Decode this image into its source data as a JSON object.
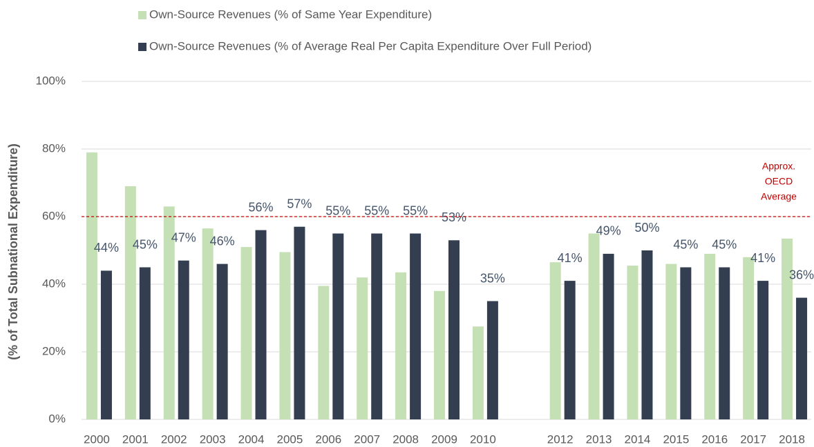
{
  "chart_data": {
    "type": "bar",
    "y_label": "(% of Total Subnational Expenditure)",
    "categories": [
      "2000",
      "2001",
      "2002",
      "2003",
      "2004",
      "2005",
      "2006",
      "2007",
      "2008",
      "2009",
      "2010",
      null,
      "2012",
      "2013",
      "2014",
      "2015",
      "2016",
      "2017",
      "2018"
    ],
    "series": [
      {
        "name": "Own-Source Revenues (% of Same Year Expenditure)",
        "color": "#c5e0b4",
        "values": [
          79,
          69,
          63,
          56.5,
          51,
          49.5,
          39.5,
          42,
          43.5,
          38,
          27.5,
          null,
          46.5,
          55,
          45.5,
          46,
          49,
          48,
          53.5
        ]
      },
      {
        "name": "Own-Source Revenues (% of Average Real Per Capita Expenditure Over Full Period)",
        "color": "#333f50",
        "values": [
          44,
          45,
          47,
          46,
          56,
          57,
          55,
          55,
          55,
          53,
          35,
          null,
          41,
          49,
          50,
          45,
          45,
          41,
          36
        ],
        "value_labels": [
          "44%",
          "45%",
          "47%",
          "46%",
          "56%",
          "57%",
          "55%",
          "55%",
          "55%",
          "53%",
          "35%",
          null,
          "41%",
          "49%",
          "50%",
          "45%",
          "45%",
          "41%",
          "36%"
        ]
      }
    ],
    "ylim": [
      0,
      100
    ],
    "yticks": [
      {
        "value": 0,
        "label": "0%"
      },
      {
        "value": 20,
        "label": "20%"
      },
      {
        "value": 40,
        "label": "40%"
      },
      {
        "value": 60,
        "label": "60%"
      },
      {
        "value": 80,
        "label": "80%"
      },
      {
        "value": 100,
        "label": "100%"
      }
    ],
    "grid": true,
    "reference_line": {
      "value": 60,
      "color": "#c00000",
      "label": [
        "Approx.",
        "OECD",
        "Average"
      ]
    }
  }
}
